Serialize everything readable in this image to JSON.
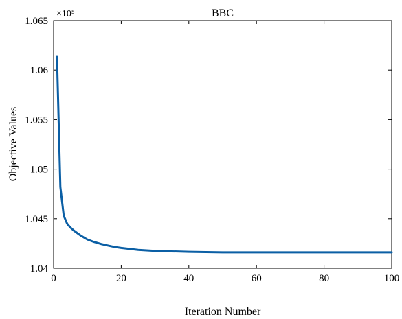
{
  "chart_data": {
    "type": "line",
    "title": "BBC",
    "xlabel": "Iteration Number",
    "ylabel": "Objective Values",
    "exponent_label": "×10⁵",
    "xlim": [
      0,
      100
    ],
    "ylim": [
      1.04,
      1.065
    ],
    "xticks": [
      0,
      20,
      40,
      60,
      80,
      100
    ],
    "xtick_labels": [
      "0",
      "20",
      "40",
      "60",
      "80",
      "100"
    ],
    "yticks": [
      1.04,
      1.045,
      1.05,
      1.055,
      1.06,
      1.065
    ],
    "ytick_labels": [
      "1.04",
      "1.045",
      "1.05",
      "1.055",
      "1.06",
      "1.065"
    ],
    "grid": false,
    "line_color": "#0b5fa5",
    "series": [
      {
        "x": [
          1,
          2,
          3,
          4,
          5,
          6,
          7,
          8,
          9,
          10,
          12,
          14,
          16,
          18,
          20,
          25,
          30,
          35,
          40,
          50,
          60,
          70,
          80,
          90,
          100
        ],
        "values": [
          1.0614,
          1.0482,
          1.0453,
          1.0445,
          1.0441,
          1.0438,
          1.04355,
          1.0433,
          1.0431,
          1.0429,
          1.04265,
          1.04245,
          1.0423,
          1.04215,
          1.04205,
          1.04185,
          1.04175,
          1.0417,
          1.04165,
          1.0416,
          1.0416,
          1.0416,
          1.0416,
          1.0416,
          1.0416
        ]
      }
    ]
  }
}
